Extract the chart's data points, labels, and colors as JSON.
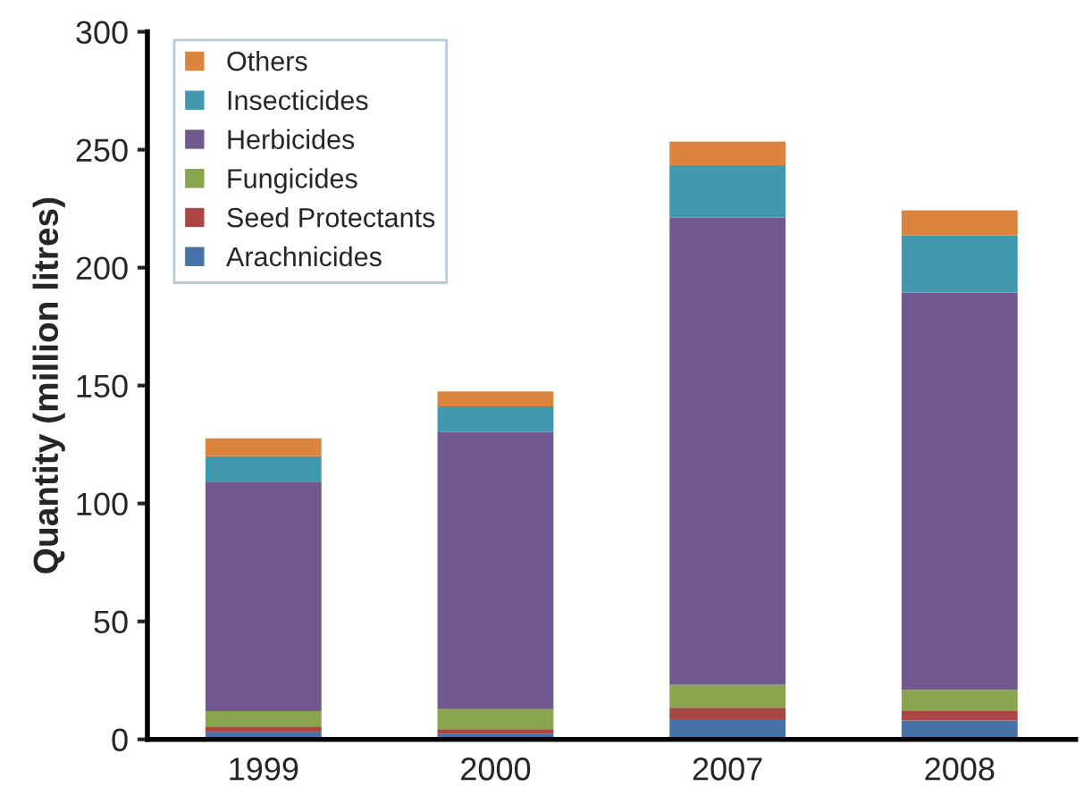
{
  "chart_data": {
    "type": "bar",
    "stacked": true,
    "ylabel": "Quantity (million litres)",
    "categories": [
      "1999",
      "2000",
      "2007",
      "2008"
    ],
    "series": [
      {
        "name": "Arachnicides",
        "color": "#4572a7",
        "values": [
          3,
          2.3,
          8.6,
          8
        ]
      },
      {
        "name": "Seed Protectants",
        "color": "#aa4643",
        "values": [
          2.5,
          2,
          4.8,
          4
        ]
      },
      {
        "name": "Fungicides",
        "color": "#89a54e",
        "values": [
          6.5,
          8.6,
          9.8,
          9
        ]
      },
      {
        "name": "Herbicides",
        "color": "#71588f",
        "values": [
          97,
          117.4,
          198,
          168.4
        ]
      },
      {
        "name": "Insecticides",
        "color": "#4198af",
        "values": [
          11,
          10.9,
          22.2,
          24.3
        ]
      },
      {
        "name": "Others",
        "color": "#db843d",
        "values": [
          7.6,
          6.3,
          10.1,
          10.6
        ]
      }
    ],
    "ylim": [
      0,
      300
    ],
    "yticks": [
      0,
      50,
      100,
      150,
      200,
      250,
      300
    ],
    "grid": false,
    "legend": "top left"
  }
}
